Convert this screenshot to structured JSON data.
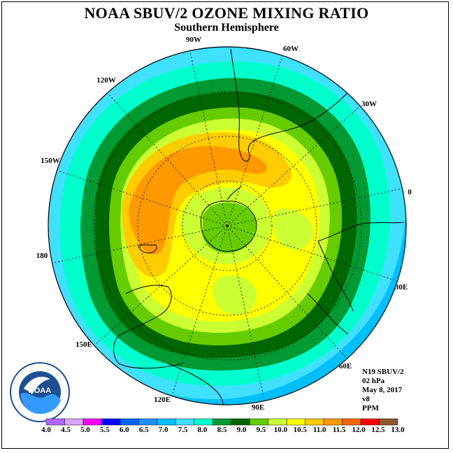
{
  "title": "NOAA SBUV/2 OZONE MIXING RATIO",
  "subtitle": "Southern Hemisphere",
  "longitude_labels": [
    "90W",
    "60W",
    "30W",
    "0",
    "30E",
    "60E",
    "90E",
    "120E",
    "150E",
    "180",
    "150W",
    "120W"
  ],
  "info": {
    "satellite": "N19 SBUV/2",
    "pressure": "02 hPa",
    "date": "May 8, 2017",
    "version": "v8",
    "units": "PPM"
  },
  "logo_text": "NOAA",
  "colorbar": {
    "labels": [
      "4.0",
      "4.5",
      "5.0",
      "5.5",
      "6.0",
      "6.5",
      "7.0",
      "7.5",
      "8.0",
      "8.5",
      "9.0",
      "9.5",
      "10.0",
      "10.5",
      "11.0",
      "11.5",
      "12.0",
      "12.5",
      "13.0"
    ],
    "colors": [
      "#b266ff",
      "#d9a6ff",
      "#ff00ff",
      "#0000ff",
      "#0066ff",
      "#1e90ff",
      "#00bfff",
      "#40e0ff",
      "#00ffcc",
      "#009933",
      "#006600",
      "#66cc00",
      "#ccff33",
      "#ffff00",
      "#ffcc00",
      "#ff9900",
      "#ff6600",
      "#ff0000",
      "#8b5a2b"
    ]
  },
  "colors": {
    "outer_cyan": "#00ffcc",
    "light_green": "#009933",
    "dark_green": "#006600",
    "yellow_green": "#99cc00",
    "yellow": "#ffff00",
    "gold": "#ffcc00",
    "orange": "#ff9900",
    "blue": "#00bfff"
  }
}
